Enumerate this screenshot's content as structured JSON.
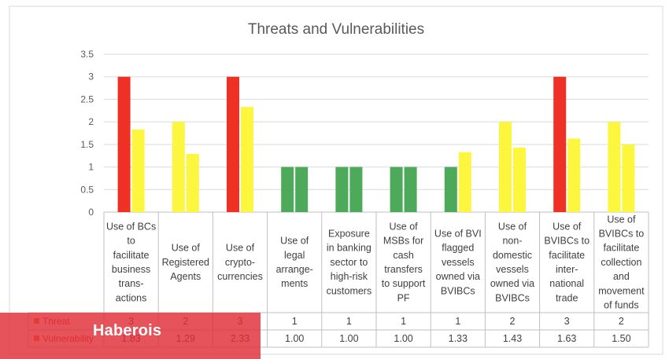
{
  "chart_data": {
    "type": "bar",
    "title": "Threats and Vulnerabilities",
    "xlabel": "",
    "ylabel": "",
    "ylim": [
      0,
      3.5
    ],
    "yticks": [
      "0",
      "0.5",
      "1",
      "1.5",
      "2",
      "2.5",
      "3",
      "3.5"
    ],
    "grid": true,
    "legend": "data-table",
    "categories": [
      [
        "Use of BCs",
        "to",
        "facilitate",
        "business",
        "trans-",
        "actions"
      ],
      [
        "Use of",
        "Registered",
        "Agents"
      ],
      [
        "Use of",
        "crypto-",
        "currencies"
      ],
      [
        "Use of",
        "legal",
        "arrange-",
        "ments"
      ],
      [
        "Exposure",
        "in banking",
        "sector to",
        "high-risk",
        "customers"
      ],
      [
        "Use of",
        "MSBs for",
        "cash",
        "transfers",
        "to support",
        "PF"
      ],
      [
        "Use of BVI",
        "flagged",
        "vessels",
        "owned via",
        "BVIBCs"
      ],
      [
        "Use of",
        "non-",
        "domestic",
        "vessels",
        "owned via",
        "BVIBCs"
      ],
      [
        "Use of",
        "BVIBCs to",
        "facilitate",
        "inter-",
        "national",
        "trade"
      ],
      [
        "Use of",
        "BVIBCs to",
        "facilitate",
        "collection",
        "and",
        "movement",
        "of funds"
      ]
    ],
    "series": [
      {
        "name": "Threat",
        "values": [
          3,
          2,
          3,
          1,
          1,
          1,
          1,
          2,
          3,
          2
        ],
        "labels": [
          "3",
          "2",
          "3",
          "1",
          "1",
          "1",
          "1",
          "2",
          "3",
          "2"
        ]
      },
      {
        "name": "Vulnerability",
        "values": [
          1.83,
          1.29,
          2.33,
          1.0,
          1.0,
          1.0,
          1.33,
          1.43,
          1.63,
          1.5
        ],
        "labels": [
          "1.83",
          "1.29",
          "2.33",
          "1.00",
          "1.00",
          "1.00",
          "1.33",
          "1.43",
          "1.63",
          "1.50"
        ]
      }
    ],
    "level_colors": {
      "3": "#ee3124",
      "2": "#fcf73e",
      "1": "#4caa5a"
    },
    "vulnerability_colors": {
      "low": "#4caa5a",
      "high": "#fcf73e"
    },
    "legend_key_color": "#ed7d31",
    "label_color": "#c0392b"
  },
  "overlay": {
    "text": "Haberois",
    "color": "#e12d37"
  }
}
